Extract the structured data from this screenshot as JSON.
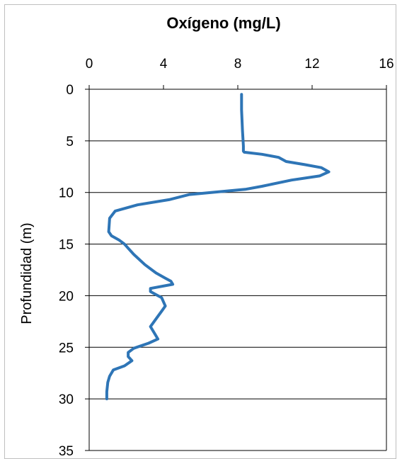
{
  "chart_data": {
    "type": "line",
    "title": "Oxígeno (mg/L)",
    "xlabel": "",
    "ylabel": "Profundidad (m)",
    "x_axis_position": "top",
    "y_axis_inverted": true,
    "xlim": [
      0,
      16
    ],
    "ylim": [
      0,
      35
    ],
    "x_ticks": [
      0,
      4,
      8,
      12,
      16
    ],
    "y_ticks": [
      0,
      5,
      10,
      15,
      20,
      25,
      30,
      35
    ],
    "grid": "horizontal major gridlines",
    "line_color": "#2e75b6",
    "series": [
      {
        "x": [
          8.2,
          8.2,
          8.25,
          8.3,
          8.3,
          8.35,
          9.3,
          10.2,
          10.6,
          11.6,
          12.5,
          12.9,
          12.4,
          10.9,
          9.3,
          8.4,
          5.4,
          4.3,
          2.6,
          1.4,
          1.1,
          1.05,
          1.2,
          1.6,
          1.9,
          2.1,
          2.4,
          3.0,
          3.6,
          4.1,
          4.4,
          4.5,
          3.3,
          3.3,
          3.6,
          3.9,
          4.1,
          3.9,
          3.7,
          3.3,
          3.5,
          3.7,
          3.2,
          2.4,
          2.1,
          2.1,
          2.3,
          1.9,
          1.3,
          1.1,
          1.0,
          0.95,
          0.95
        ],
        "y": [
          0.5,
          2.0,
          4.0,
          5.5,
          6.0,
          6.1,
          6.3,
          6.6,
          7.0,
          7.3,
          7.6,
          8.0,
          8.4,
          8.8,
          9.4,
          9.7,
          10.2,
          10.7,
          11.2,
          11.8,
          12.5,
          13.8,
          14.2,
          14.6,
          15.0,
          15.4,
          16.0,
          17.0,
          17.8,
          18.3,
          18.6,
          18.9,
          19.3,
          19.6,
          19.9,
          20.2,
          21.0,
          21.5,
          22.0,
          23.0,
          23.6,
          24.2,
          24.6,
          25.1,
          25.5,
          25.9,
          26.3,
          26.8,
          27.2,
          27.8,
          28.4,
          29.3,
          30.0
        ]
      }
    ]
  }
}
